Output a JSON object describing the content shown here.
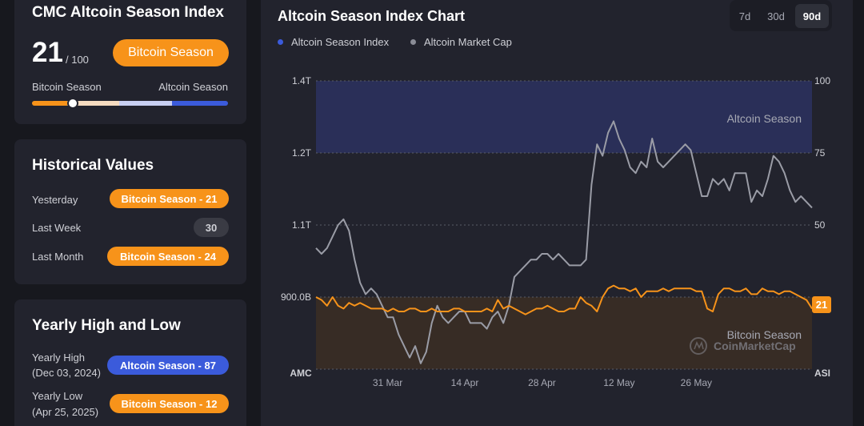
{
  "index_card": {
    "title": "CMC Altcoin Season Index",
    "value": "21",
    "max": "/ 100",
    "badge": "Bitcoin Season",
    "left_label": "Bitcoin Season",
    "right_label": "Altcoin Season",
    "slider_fraction": 0.21,
    "colors": {
      "bitcoin": "#f7931a",
      "altcoin": "#3b5bdb"
    }
  },
  "historical": {
    "title": "Historical Values",
    "rows": [
      {
        "label": "Yesterday",
        "value": "Bitcoin Season - 21",
        "type": "orange"
      },
      {
        "label": "Last Week",
        "value": "30",
        "type": "gray"
      },
      {
        "label": "Last Month",
        "value": "Bitcoin Season - 24",
        "type": "orange"
      }
    ]
  },
  "yearly": {
    "title": "Yearly High and Low",
    "high_label": "Yearly High",
    "high_date": "(Dec 03, 2024)",
    "high_value": "Altcoin Season - 87",
    "low_label": "Yearly Low",
    "low_date": "(Apr 25, 2025)",
    "low_value": "Bitcoin Season - 12"
  },
  "chart_panel": {
    "title": "Altcoin Season Index Chart",
    "ranges": [
      "7d",
      "30d",
      "90d"
    ],
    "active_range": "90d",
    "legend": [
      {
        "name": "Altcoin Season Index",
        "color": "#3b5bdb"
      },
      {
        "name": "Altcoin Market Cap",
        "color": "#8a8c96"
      }
    ],
    "zone_labels": {
      "top": "Altcoin Season",
      "bottom": "Bitcoin Season"
    },
    "watermark": "CoinMarketCap",
    "current_badge": "21"
  },
  "chart_data": {
    "type": "line",
    "x_ticks": [
      "31 Mar",
      "14 Apr",
      "28 Apr",
      "12 May",
      "26 May"
    ],
    "left_axis": {
      "label": "AMC",
      "ticks": [
        "1.4T",
        "1.2T",
        "1.1T",
        "900.0B"
      ],
      "range": [
        900000000000,
        1400000000000
      ]
    },
    "right_axis": {
      "label": "ASI",
      "ticks": [
        "100",
        "75",
        "50"
      ],
      "range": [
        0,
        100
      ]
    },
    "series": [
      {
        "name": "Altcoin Season Index",
        "axis": "right",
        "values": [
          25,
          24,
          22,
          25,
          22,
          21,
          23,
          22,
          23,
          22,
          21,
          21,
          21,
          20,
          21,
          20,
          20,
          21,
          21,
          20,
          20,
          21,
          20,
          20,
          20,
          21,
          21,
          20,
          20,
          20,
          20,
          21,
          20,
          24,
          21,
          22,
          21,
          20,
          19,
          20,
          21,
          21,
          22,
          21,
          20,
          20,
          21,
          21,
          25,
          23,
          22,
          20,
          25,
          28,
          29,
          28,
          28,
          27,
          28,
          25,
          27,
          27,
          27,
          28,
          27,
          28,
          28,
          28,
          28,
          27,
          27,
          21,
          20,
          26,
          28,
          28,
          27,
          27,
          28,
          26,
          26,
          28,
          27,
          27,
          26,
          27,
          27,
          26,
          25,
          24,
          21
        ]
      },
      {
        "name": "Altcoin Market Cap",
        "axis": "left",
        "unit": "USD",
        "values": [
          1110000000000,
          1100000000000,
          1110000000000,
          1130000000000,
          1150000000000,
          1160000000000,
          1140000000000,
          1090000000000,
          1050000000000,
          1030000000000,
          1040000000000,
          1030000000000,
          1010000000000,
          990000000000,
          990000000000,
          960000000000,
          940000000000,
          920000000000,
          940000000000,
          910000000000,
          930000000000,
          980000000000,
          1010000000000,
          990000000000,
          980000000000,
          990000000000,
          1000000000000,
          1000000000000,
          980000000000,
          980000000000,
          980000000000,
          970000000000,
          990000000000,
          1000000000000,
          980000000000,
          1010000000000,
          1060000000000,
          1070000000000,
          1080000000000,
          1090000000000,
          1090000000000,
          1100000000000,
          1100000000000,
          1090000000000,
          1100000000000,
          1090000000000,
          1080000000000,
          1080000000000,
          1080000000000,
          1090000000000,
          1220000000000,
          1290000000000,
          1270000000000,
          1310000000000,
          1330000000000,
          1300000000000,
          1280000000000,
          1250000000000,
          1240000000000,
          1260000000000,
          1250000000000,
          1300000000000,
          1260000000000,
          1250000000000,
          1260000000000,
          1270000000000,
          1280000000000,
          1290000000000,
          1280000000000,
          1240000000000,
          1200000000000,
          1200000000000,
          1230000000000,
          1220000000000,
          1230000000000,
          1210000000000,
          1240000000000,
          1240000000000,
          1240000000000,
          1190000000000,
          1210000000000,
          1200000000000,
          1230000000000,
          1270000000000,
          1260000000000,
          1240000000000,
          1210000000000,
          1190000000000,
          1200000000000,
          1190000000000,
          1180000000000
        ]
      }
    ],
    "zones": [
      {
        "name": "Altcoin Season",
        "from": 75,
        "to": 100
      },
      {
        "name": "Bitcoin Season",
        "from": 0,
        "to": 25
      }
    ]
  }
}
